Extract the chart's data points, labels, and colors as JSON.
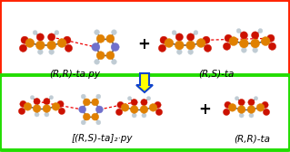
{
  "top_box_color": "#ff2200",
  "bottom_box_color": "#22dd00",
  "arrow_fill": "#ffff00",
  "arrow_edge": "#1144cc",
  "bg": "#ffffff",
  "label_top_left": "(R,R)-ta.py",
  "label_top_right": "(R,S)-ta",
  "label_bottom_left": "[(R,S)-ta]₂·py",
  "label_bottom_right": "(R,R)-ta",
  "plus": "+",
  "C_orange": "#e08000",
  "O_red": "#cc1100",
  "H_gray": "#c0ccd4",
  "N_blue": "#7070cc",
  "bond_color": "#555555",
  "hbond_color": "#ee0000",
  "label_fontsize": 7.5,
  "plus_fontsize": 12
}
